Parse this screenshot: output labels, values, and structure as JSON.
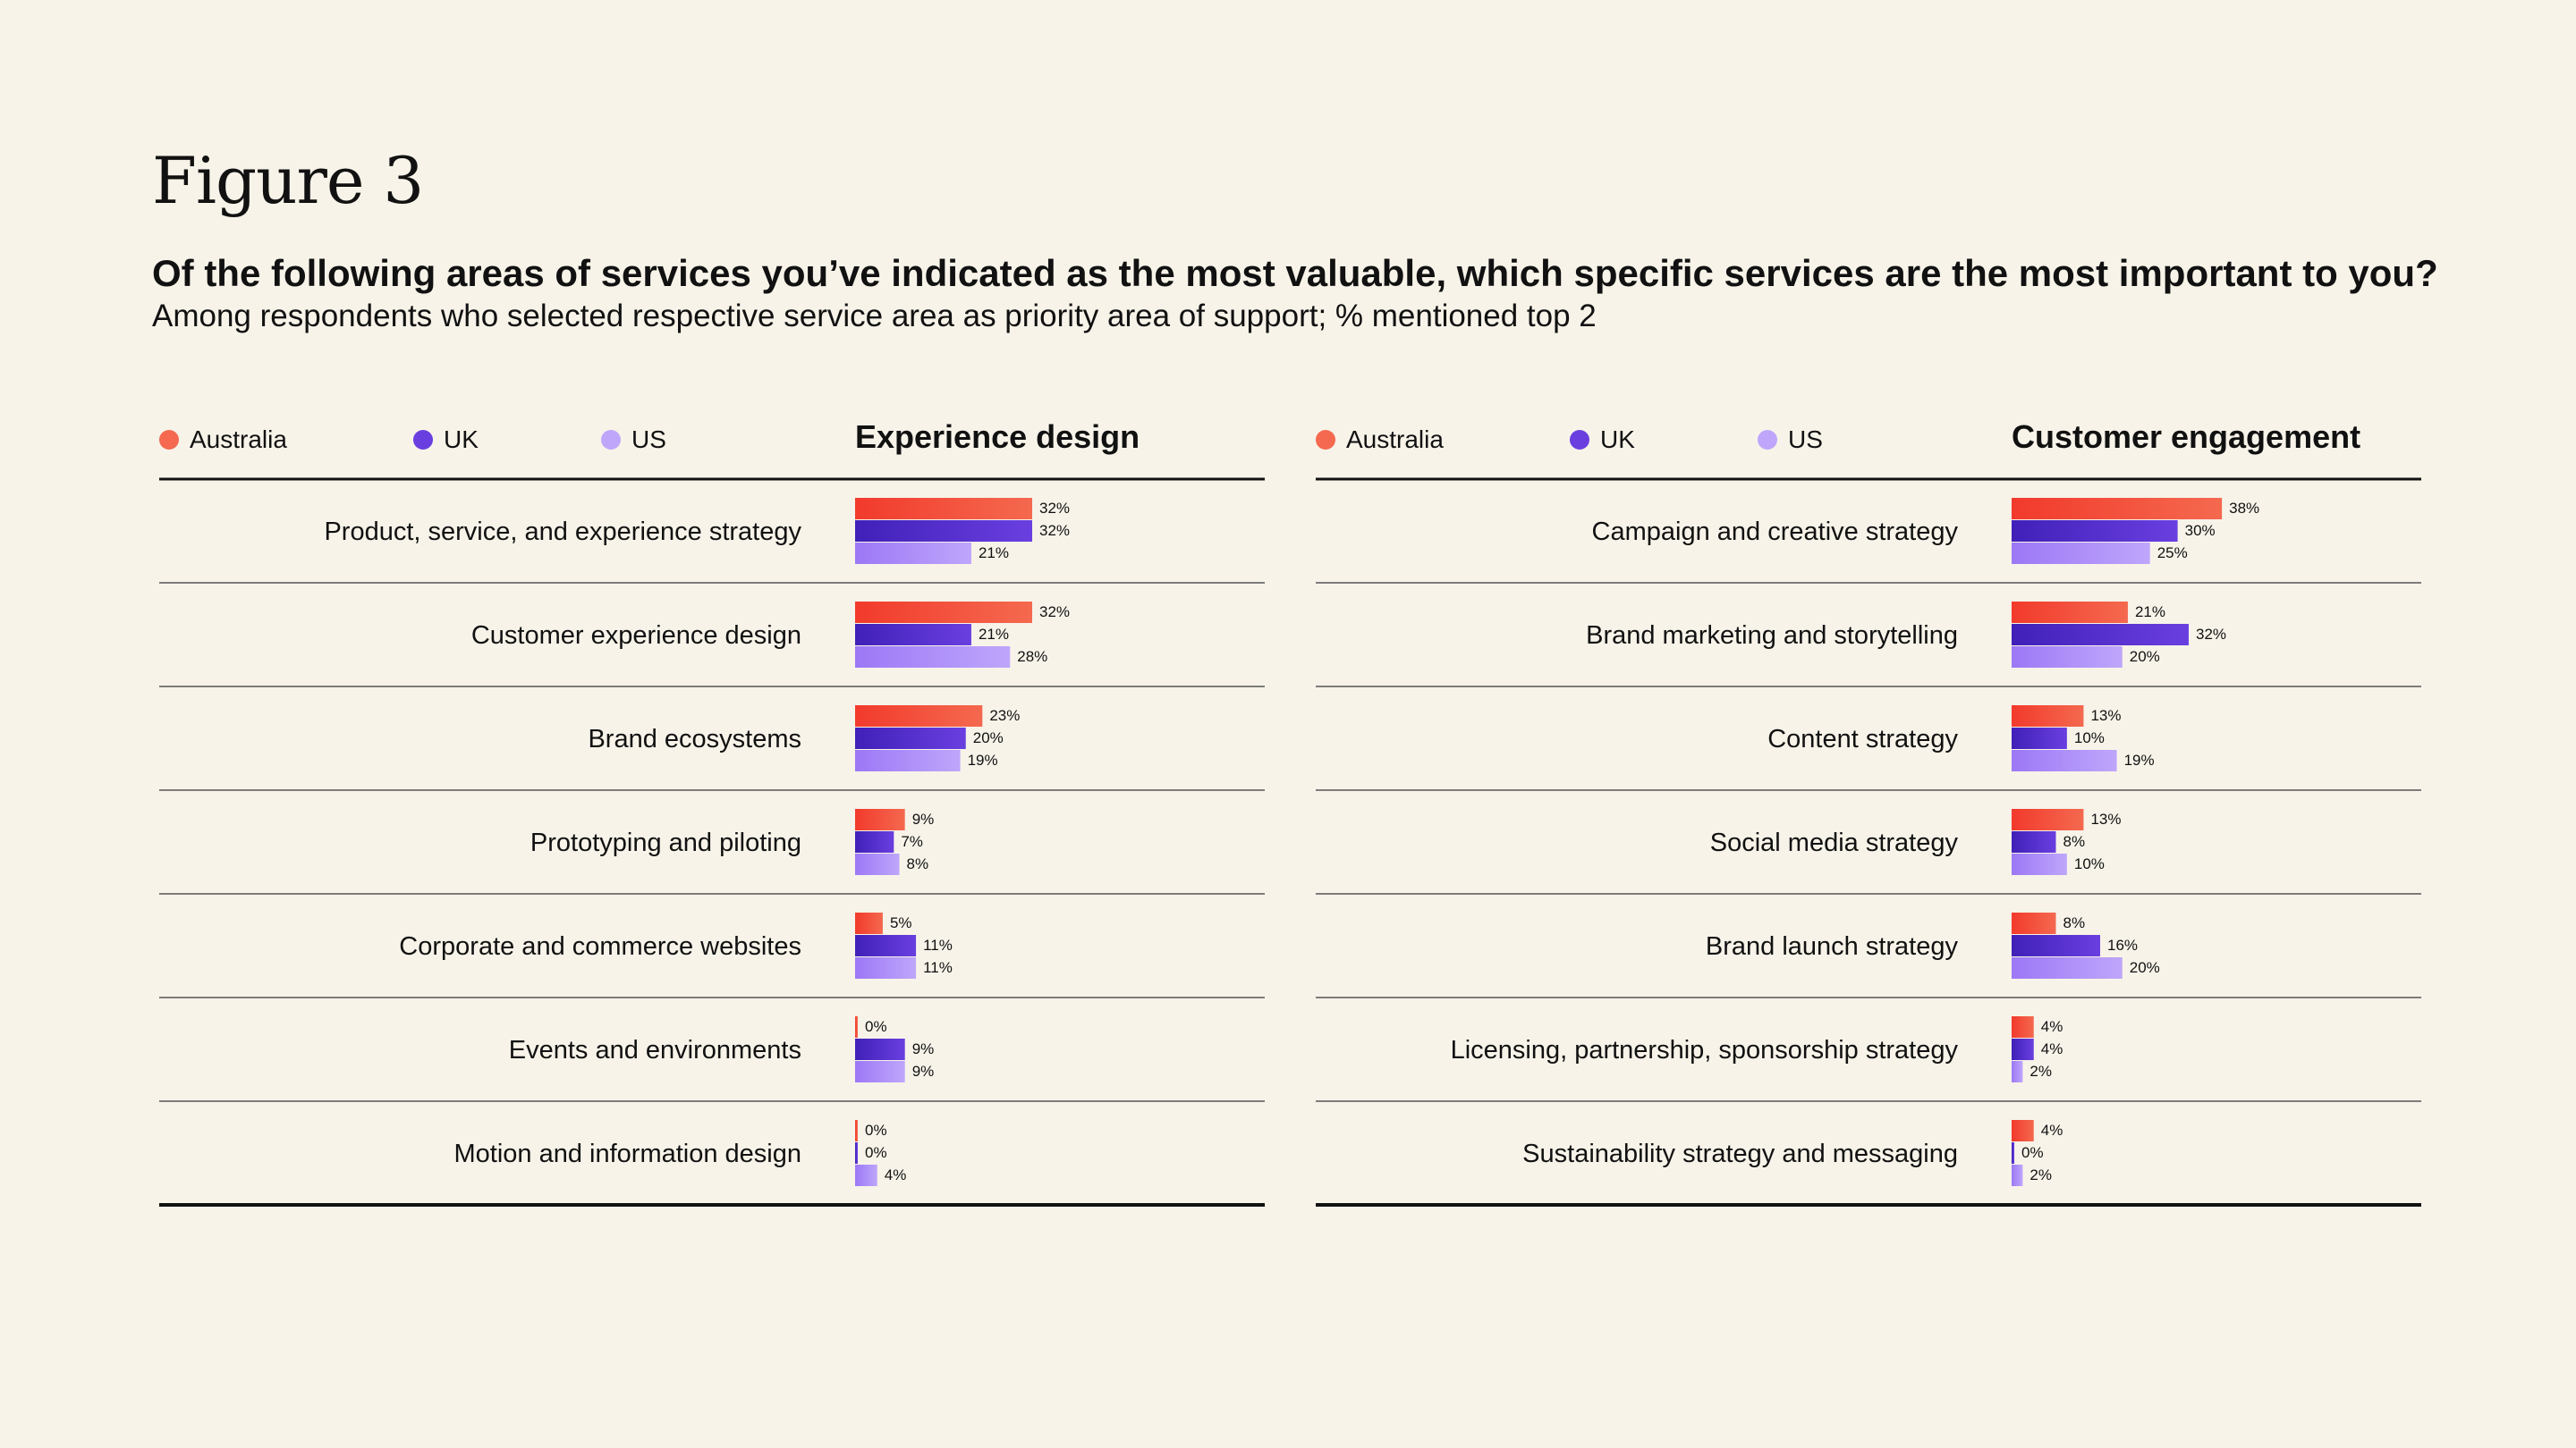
{
  "figure_title": "Figure 3",
  "question": "Of the following areas of services you’ve indicated as the most valuable, which specific services are the most important to you?",
  "subtitle": "Among respondents who selected respective service area as priority area of support; % mentioned top 2",
  "colors": {
    "australia": "#f4694f",
    "australia_dark": "#f23a2c",
    "uk": "#6a3fe0",
    "uk_dark": "#4020b8",
    "us": "#bfa6fb",
    "us_dark": "#9c78f6",
    "rule": "#111111",
    "background": "#f7f3e9"
  },
  "chart_data": [
    {
      "type": "bar",
      "title": "Experience design",
      "legend": [
        "Australia",
        "UK",
        "US"
      ],
      "categories": [
        "Product, service, and experience strategy",
        "Customer experience design",
        "Brand ecosystems",
        "Prototyping and piloting",
        "Corporate and commerce websites",
        "Events and environments",
        "Motion and information design"
      ],
      "series": [
        {
          "name": "Australia",
          "values": [
            32,
            32,
            23,
            9,
            5,
            0,
            0
          ],
          "labels": [
            "32%",
            "32%",
            "23%",
            "9%",
            "5%",
            "0%",
            "0%"
          ]
        },
        {
          "name": "UK",
          "values": [
            32,
            21,
            20,
            7,
            11,
            9,
            0
          ],
          "labels": [
            "32%",
            "21%",
            "20%",
            "7%",
            "11%",
            "9%",
            "0%"
          ]
        },
        {
          "name": "US",
          "values": [
            21,
            28,
            19,
            8,
            11,
            9,
            4
          ],
          "labels": [
            "21%",
            "28%",
            "19%",
            "8%",
            "11%",
            "9%",
            "4%"
          ]
        }
      ],
      "xlim": [
        0,
        40
      ],
      "orientation": "horizontal"
    },
    {
      "type": "bar",
      "title": "Customer engagement",
      "legend": [
        "Australia",
        "UK",
        "US"
      ],
      "categories": [
        "Campaign and creative strategy",
        "Brand marketing and storytelling",
        "Content strategy",
        "Social media strategy",
        "Brand launch strategy",
        "Licensing, partnership, sponsorship strategy",
        "Sustainability strategy and messaging"
      ],
      "series": [
        {
          "name": "Australia",
          "values": [
            38,
            21,
            13,
            13,
            8,
            4,
            4
          ],
          "labels": [
            "38%",
            "21%",
            "13%",
            "13%",
            "8%",
            "4%",
            "4%"
          ]
        },
        {
          "name": "UK",
          "values": [
            30,
            32,
            10,
            8,
            16,
            4,
            0
          ],
          "labels": [
            "30%",
            "32%",
            "10%",
            "8%",
            "16%",
            "4%",
            "0%"
          ]
        },
        {
          "name": "US",
          "values": [
            25,
            20,
            19,
            10,
            20,
            2,
            2
          ],
          "labels": [
            "25%",
            "20%",
            "19%",
            "10%",
            "20%",
            "2%",
            "2%"
          ]
        }
      ],
      "xlim": [
        0,
        40
      ],
      "orientation": "horizontal"
    }
  ]
}
